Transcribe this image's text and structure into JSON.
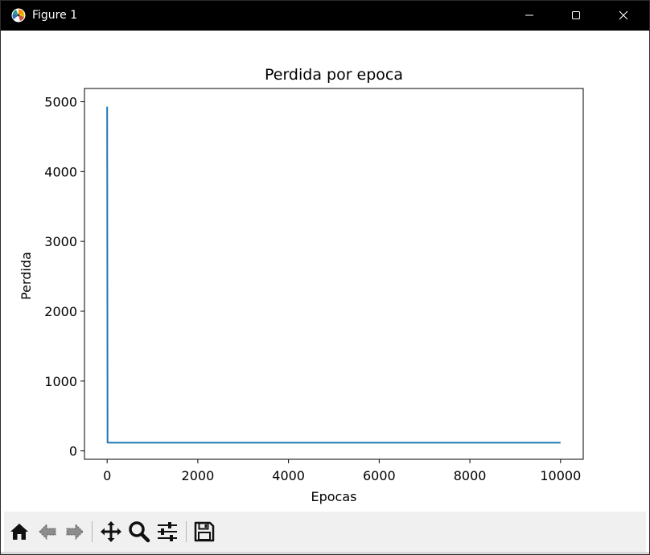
{
  "window": {
    "title": "Figure 1",
    "app_icon": "matplotlib-icon",
    "controls": [
      "minimize-icon",
      "maximize-icon",
      "close-icon"
    ]
  },
  "toolbar": {
    "icons": [
      "home-icon",
      "back-arrow-icon",
      "forward-arrow-icon",
      "pan-move-icon",
      "zoom-magnifier-icon",
      "configure-subplots-icon",
      "save-floppy-icon"
    ]
  },
  "colors": {
    "titlebar": "#000000",
    "line": "#1f77b4",
    "toolbar_bg": "#f0f0f0"
  },
  "chart_data": {
    "type": "line",
    "title": "Perdida por epoca",
    "xlabel": "Epocas",
    "ylabel": "Perdida",
    "xlim": [
      -500,
      10500
    ],
    "ylim": [
      -120,
      5190
    ],
    "xticks": [
      0,
      2000,
      4000,
      6000,
      8000,
      10000
    ],
    "yticks": [
      0,
      1000,
      2000,
      3000,
      4000,
      5000
    ],
    "xtick_labels": [
      "0",
      "2000",
      "4000",
      "6000",
      "8000",
      "10000"
    ],
    "ytick_labels": [
      "0",
      "1000",
      "2000",
      "3000",
      "4000",
      "5000"
    ],
    "grid": false,
    "series": [
      {
        "x": [
          0,
          10,
          20,
          50,
          100,
          500,
          1000,
          2000,
          4000,
          6000,
          8000,
          10000
        ],
        "y": [
          4930,
          120,
          118,
          117,
          117,
          117,
          117,
          117,
          117,
          117,
          117,
          117
        ]
      }
    ]
  }
}
